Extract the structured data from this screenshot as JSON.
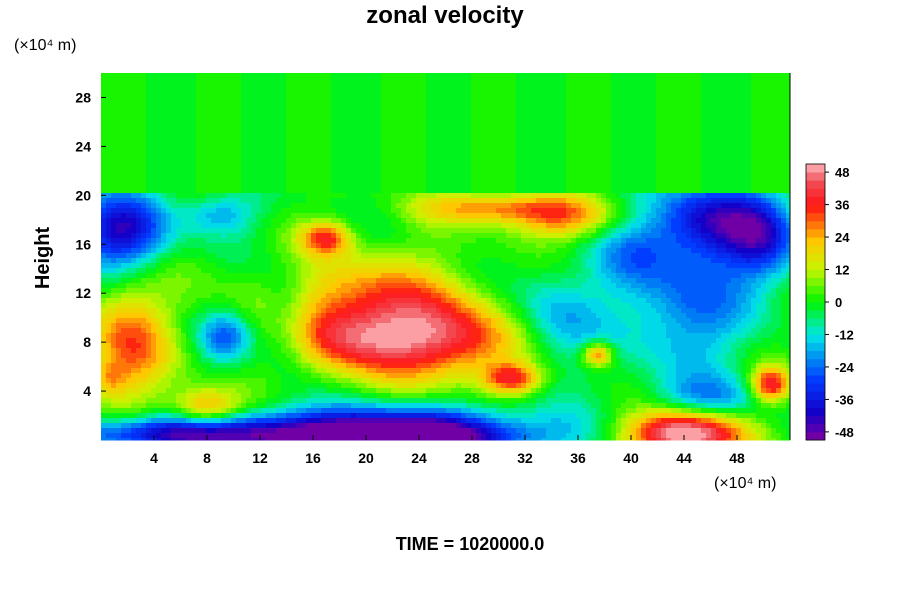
{
  "chart_data": {
    "type": "heatmap",
    "title": "zonal velocity",
    "ylabel": "Height",
    "xlabel": "",
    "x_unit": "(×10⁴ m)",
    "y_unit": "(×10⁴ m)",
    "xlim": [
      0,
      52
    ],
    "ylim": [
      0,
      30
    ],
    "x_ticks": [
      "4",
      "8",
      "12",
      "16",
      "20",
      "24",
      "28",
      "32",
      "36",
      "40",
      "44",
      "48"
    ],
    "x_tick_values": [
      4,
      8,
      12,
      16,
      20,
      24,
      28,
      32,
      36,
      40,
      44,
      48
    ],
    "y_ticks": [
      "4",
      "8",
      "12",
      "16",
      "20",
      "24",
      "28"
    ],
    "y_tick_values": [
      4,
      8,
      12,
      16,
      20,
      24,
      28
    ],
    "colorbar": {
      "labels": [
        "48",
        "36",
        "24",
        "12",
        "0",
        "-12",
        "-24",
        "-36",
        "-48"
      ],
      "values": [
        48,
        36,
        24,
        12,
        0,
        -12,
        -24,
        -36,
        -48
      ],
      "min": -51,
      "max": 51,
      "levels": 34
    },
    "features": [
      {
        "x": 20,
        "y": 10,
        "sx": 5.5,
        "sy": 3.2,
        "value": 40
      },
      {
        "x": 19,
        "y": 8,
        "sx": 3.5,
        "sy": 1.6,
        "value": 12
      },
      {
        "x": 27,
        "y": 8,
        "sx": 3.5,
        "sy": 2.2,
        "value": 28
      },
      {
        "x": 31,
        "y": 5,
        "sx": 1.5,
        "sy": 0.9,
        "value": 34
      },
      {
        "x": 17,
        "y": 16.5,
        "sx": 1.3,
        "sy": 0.9,
        "value": 30
      },
      {
        "x": 30,
        "y": 19,
        "sx": 4.0,
        "sy": 0.9,
        "value": 28
      },
      {
        "x": 35,
        "y": 18,
        "sx": 3.0,
        "sy": 1.2,
        "value": 24
      },
      {
        "x": 2,
        "y": 8,
        "sx": 2.2,
        "sy": 3.5,
        "value": 30
      },
      {
        "x": 0.5,
        "y": 5,
        "sx": 1.0,
        "sy": 1.0,
        "value": 14
      },
      {
        "x": 8,
        "y": 2.5,
        "sx": 1.8,
        "sy": 1.2,
        "value": 32
      },
      {
        "x": 44,
        "y": 0.5,
        "sx": 3.0,
        "sy": 1.3,
        "value": 58
      },
      {
        "x": 50.5,
        "y": 4.5,
        "sx": 1.0,
        "sy": 1.0,
        "value": 40
      },
      {
        "x": 37.5,
        "y": 7,
        "sx": 0.8,
        "sy": 0.7,
        "value": 34
      },
      {
        "x": 21,
        "y": 0.5,
        "sx": 8.0,
        "sy": 1.5,
        "value": -60
      },
      {
        "x": 22,
        "y": 0.2,
        "sx": 5.5,
        "sy": 0.7,
        "value": -20
      },
      {
        "x": 5,
        "y": 0.5,
        "sx": 5.0,
        "sy": 1.0,
        "value": -40
      },
      {
        "x": 1.5,
        "y": 17,
        "sx": 2.5,
        "sy": 2.2,
        "value": -42
      },
      {
        "x": 9,
        "y": 18.5,
        "sx": 2.0,
        "sy": 1.2,
        "value": -18
      },
      {
        "x": 14,
        "y": 9.5,
        "sx": 1.6,
        "sy": 3.0,
        "value": -22
      },
      {
        "x": 9.5,
        "y": 8.5,
        "sx": 1.5,
        "sy": 1.5,
        "value": -26
      },
      {
        "x": 46,
        "y": 18,
        "sx": 3.5,
        "sy": 2.2,
        "value": -36
      },
      {
        "x": 44,
        "y": 11,
        "sx": 3.5,
        "sy": 4.0,
        "value": -24
      },
      {
        "x": 50,
        "y": 16,
        "sx": 2.0,
        "sy": 2.5,
        "value": -26
      },
      {
        "x": 34,
        "y": 10,
        "sx": 2.5,
        "sy": 3.0,
        "value": -18
      },
      {
        "x": 40,
        "y": 15,
        "sx": 2.0,
        "sy": 2.0,
        "value": -12
      },
      {
        "x": 46,
        "y": 3.5,
        "sx": 3.0,
        "sy": 1.2,
        "value": -16
      }
    ]
  },
  "footer": {
    "time_label": "TIME = 1020000.0"
  }
}
